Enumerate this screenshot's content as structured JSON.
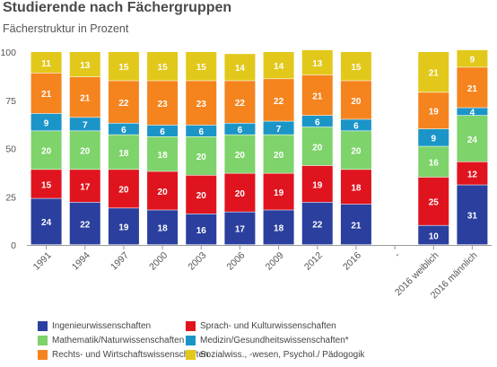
{
  "title": "Studierende nach Fächergruppen",
  "subtitle": "Fächerstruktur in Prozent",
  "colors": {
    "axis": "#999999",
    "tick_text": "#555555",
    "label_light": "#ffffff",
    "label_dark": "#ffffff"
  },
  "chart_data": {
    "type": "bar",
    "stacked": true,
    "title": "Studierende nach Fächergruppen",
    "subtitle": "Fächerstruktur in Prozent",
    "xlabel": "",
    "ylabel": "",
    "ylim": [
      0,
      100
    ],
    "yticks": [
      0,
      25,
      50,
      75,
      100
    ],
    "grid": false,
    "legend_position": "bottom",
    "categories": [
      "1991",
      "1994",
      "1997",
      "2000",
      "2003",
      "2006",
      "2009",
      "2012",
      "2016",
      "-",
      "2016 weiblich",
      "2016 männlich"
    ],
    "series": [
      {
        "name": "Ingenieurwissenschaften",
        "color": "#2a3f9e",
        "values": [
          24,
          22,
          19,
          18,
          16,
          17,
          18,
          22,
          21,
          null,
          10,
          31
        ]
      },
      {
        "name": "Sprach- und Kulturwissenschaften",
        "color": "#e0141e",
        "values": [
          15,
          17,
          20,
          20,
          20,
          20,
          19,
          19,
          18,
          null,
          25,
          12
        ]
      },
      {
        "name": "Mathematik/Naturwissenschaften",
        "color": "#7ed36a",
        "values": [
          20,
          20,
          18,
          18,
          20,
          20,
          20,
          20,
          20,
          null,
          16,
          24
        ]
      },
      {
        "name": "Medizin/Gesundheitswissenschaften*",
        "color": "#1b95c8",
        "values": [
          9,
          7,
          6,
          6,
          6,
          6,
          7,
          6,
          6,
          null,
          9,
          4
        ]
      },
      {
        "name": "Rechts- und Wirtschaftswissenschaften",
        "color": "#f5841f",
        "values": [
          21,
          21,
          22,
          23,
          23,
          22,
          22,
          21,
          20,
          null,
          19,
          21
        ]
      },
      {
        "name": "Sozialwiss., -wesen, Psychol./ Pädogogik",
        "color": "#e2c81a",
        "values": [
          11,
          13,
          15,
          15,
          15,
          14,
          14,
          13,
          15,
          null,
          21,
          9
        ]
      }
    ]
  }
}
